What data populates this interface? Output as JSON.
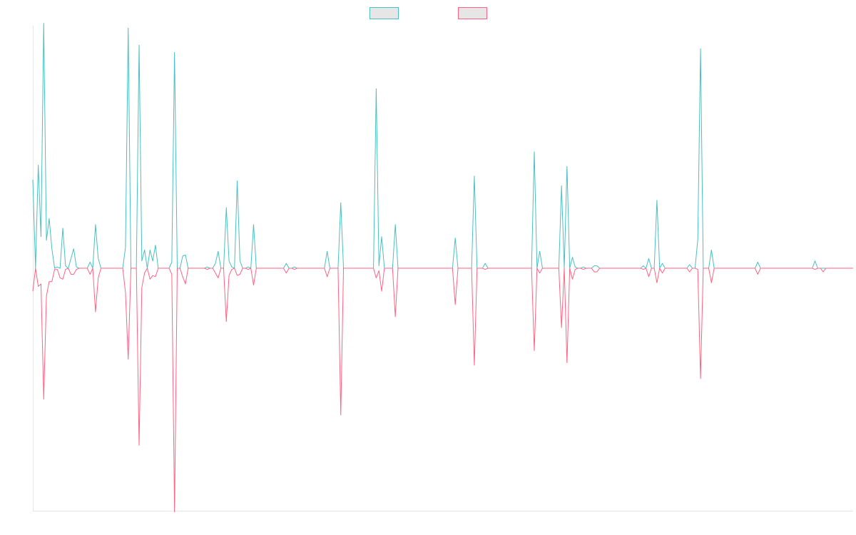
{
  "chart_data": {
    "type": "line",
    "title": "",
    "xlabel": "",
    "ylabel": "",
    "ylim": [
      -1,
      1
    ],
    "grid": false,
    "legend": "top",
    "x_start": 0,
    "x_step": 1,
    "series": [
      {
        "color": "#4bc0c0",
        "values": [
          0.365,
          0,
          0.425,
          0.13,
          1.01,
          0.115,
          0.205,
          0.08,
          0,
          0.005,
          0,
          0.165,
          0.01,
          0,
          0.04,
          0.08,
          0.005,
          0,
          0,
          0,
          0,
          0.025,
          0,
          0.18,
          0.04,
          0,
          0,
          0,
          0,
          0,
          0,
          0,
          0,
          0,
          0.085,
          0.99,
          0,
          0,
          0,
          0.92,
          0.03,
          0.075,
          0,
          0.075,
          0.03,
          0.095,
          0,
          0,
          0,
          0,
          0,
          0.025,
          0.89,
          0,
          0,
          0.05,
          0.055,
          0,
          0,
          0,
          0,
          0,
          0,
          0,
          0.005,
          0,
          0,
          0.02,
          0.07,
          0,
          0,
          0.25,
          0.03,
          0.005,
          0,
          0.36,
          0.03,
          0,
          0,
          0.005,
          0,
          0.18,
          0,
          0,
          0,
          0,
          0,
          0,
          0,
          0,
          0,
          0,
          0,
          0.02,
          0,
          0,
          0.005,
          0,
          0,
          0,
          0,
          0,
          0,
          0,
          0,
          0,
          0,
          0,
          0.07,
          0,
          0,
          0,
          0,
          0.27,
          0,
          0,
          0,
          0,
          0,
          0,
          0,
          0,
          0,
          0,
          0,
          0,
          0.74,
          0.01,
          0.13,
          0,
          0,
          0,
          0,
          0.18,
          0,
          0,
          0,
          0,
          0,
          0,
          0,
          0,
          0,
          0,
          0,
          0,
          0,
          0,
          0,
          0,
          0,
          0,
          0,
          0,
          0,
          0.125,
          0,
          0,
          0,
          0,
          0,
          0,
          0.38,
          0,
          0,
          0,
          0.02,
          0,
          0,
          0,
          0,
          0,
          0,
          0,
          0,
          0,
          0,
          0,
          0,
          0,
          0,
          0,
          0,
          0,
          0.48,
          0,
          0.07,
          0,
          0,
          0,
          0,
          0,
          0,
          0,
          0.34,
          0,
          0.42,
          0,
          0.045,
          0.005,
          0,
          0,
          0.005,
          0,
          0,
          0,
          0.01,
          0.01,
          0,
          0,
          0,
          0,
          0,
          0,
          0,
          0,
          0,
          0,
          0,
          0,
          0,
          0,
          0,
          0,
          0.01,
          0,
          0.04,
          0,
          0,
          0.28,
          0,
          0.02,
          0,
          0,
          0,
          0,
          0,
          0,
          0,
          0,
          0,
          0.015,
          0,
          0,
          0.12,
          0.905,
          0,
          0,
          0,
          0.075,
          0,
          0,
          0,
          0,
          0,
          0,
          0,
          0,
          0,
          0,
          0,
          0,
          0,
          0,
          0,
          0,
          0.025,
          0,
          0,
          0,
          0,
          0,
          0,
          0,
          0,
          0,
          0,
          0,
          0,
          0,
          0,
          0,
          0,
          0,
          0,
          0,
          0,
          0.03,
          0,
          0,
          0,
          0,
          0,
          0,
          0,
          0,
          0,
          0,
          0,
          0,
          0,
          0
        ]
      },
      {
        "color": "#ff6384",
        "values": [
          -0.095,
          0,
          -0.075,
          -0.065,
          -0.54,
          -0.115,
          -0.055,
          -0.055,
          -0.005,
          -0.005,
          -0.04,
          -0.045,
          -0.005,
          0,
          -0.025,
          -0.025,
          -0.005,
          0,
          0,
          0,
          0,
          -0.025,
          0,
          -0.18,
          -0.04,
          0,
          0,
          0,
          0,
          0,
          0,
          0,
          0,
          0,
          -0.1,
          -0.375,
          0,
          0,
          0,
          -0.73,
          -0.08,
          -0.02,
          0,
          -0.045,
          -0.03,
          -0.035,
          0,
          0,
          0,
          0,
          0,
          -0.025,
          -1.005,
          0,
          0,
          -0.035,
          -0.065,
          0,
          0,
          0,
          0,
          0,
          0,
          0,
          -0.005,
          0,
          0,
          -0.02,
          -0.04,
          0,
          0,
          -0.22,
          -0.03,
          -0.005,
          0,
          -0.03,
          -0.025,
          0,
          0,
          -0.005,
          0,
          -0.07,
          0,
          0,
          0,
          0,
          0,
          0,
          0,
          0,
          0,
          0,
          0,
          -0.02,
          0,
          0,
          -0.005,
          0,
          0,
          0,
          0,
          0,
          0,
          0,
          0,
          0,
          0,
          0,
          -0.035,
          0,
          0,
          0,
          0,
          -0.605,
          0,
          0,
          0,
          0,
          0,
          0,
          0,
          0,
          0,
          0,
          0,
          0,
          -0.04,
          -0.01,
          -0.095,
          0,
          0,
          0,
          0,
          -0.2,
          0,
          0,
          0,
          0,
          0,
          0,
          0,
          0,
          0,
          0,
          0,
          0,
          0,
          0,
          0,
          0,
          0,
          0,
          0,
          0,
          0,
          -0.15,
          0,
          0,
          0,
          0,
          0,
          0,
          -0.4,
          0,
          0,
          0,
          -0.005,
          0,
          0,
          0,
          0,
          0,
          0,
          0,
          0,
          0,
          0,
          0,
          0,
          0,
          0,
          0,
          0,
          0,
          -0.34,
          0,
          -0.02,
          0,
          0,
          0,
          0,
          0,
          0,
          0,
          -0.245,
          0,
          -0.39,
          0,
          -0.045,
          -0.005,
          0,
          0,
          -0.005,
          0,
          0,
          0,
          -0.015,
          -0.015,
          0,
          0,
          0,
          0,
          0,
          0,
          0,
          0,
          0,
          0,
          0,
          0,
          0,
          0,
          0,
          0,
          -0.005,
          0,
          -0.035,
          0,
          0,
          -0.06,
          0,
          -0.02,
          0,
          0,
          0,
          0,
          0,
          0,
          0,
          0,
          0,
          -0.015,
          0,
          0,
          -0.005,
          -0.455,
          0,
          0,
          0,
          -0.06,
          0,
          0,
          0,
          0,
          0,
          0,
          0,
          0,
          0,
          0,
          0,
          0,
          0,
          0,
          0,
          0,
          -0.025,
          0,
          0,
          0,
          0,
          0,
          0,
          0,
          0,
          0,
          0,
          0,
          0,
          0,
          0,
          0,
          0,
          0,
          0,
          0,
          0,
          -0.005,
          0,
          0,
          -0.015,
          0,
          0,
          0,
          0,
          0,
          0,
          0,
          0,
          0,
          0,
          0
        ]
      }
    ]
  }
}
